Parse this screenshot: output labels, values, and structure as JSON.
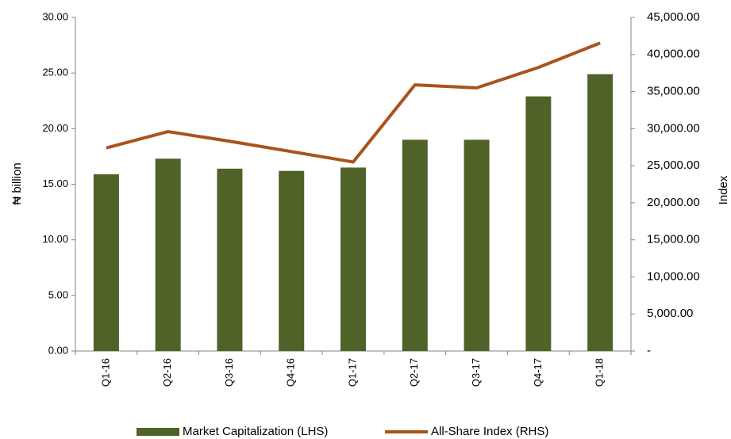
{
  "chart_data": {
    "type": "bar_line",
    "categories": [
      "Q1-16",
      "Q2-16",
      "Q3-16",
      "Q4-16",
      "Q1-17",
      "Q2-17",
      "Q3-17",
      "Q4-17",
      "Q1-18"
    ],
    "series": [
      {
        "name": "Market Capitalization (LHS)",
        "type": "bar",
        "color": "#4f6228",
        "values": [
          15.9,
          17.3,
          16.4,
          16.2,
          16.5,
          19.0,
          19.0,
          22.9,
          24.9
        ]
      },
      {
        "name": "All-Share Index (RHS)",
        "type": "line",
        "axis": "y2",
        "color": "#a8541c",
        "values": [
          27400,
          29600,
          28300,
          26900,
          25500,
          35900,
          35500,
          38250,
          41550
        ]
      }
    ],
    "ylabel": "₦ billion",
    "y2label": "Index",
    "ylim": [
      0,
      30
    ],
    "yticks": [
      {
        "value": 0,
        "label": "0.00"
      },
      {
        "value": 5,
        "label": "5.00"
      },
      {
        "value": 10,
        "label": "10.00"
      },
      {
        "value": 15,
        "label": "15.00"
      },
      {
        "value": 20,
        "label": "20.00"
      },
      {
        "value": 25,
        "label": "25.00"
      },
      {
        "value": 30,
        "label": "30.00"
      }
    ],
    "y2lim": [
      0,
      45000
    ],
    "y2ticks": [
      {
        "value": 0,
        "label": "-"
      },
      {
        "value": 5000,
        "label": "5,000.00"
      },
      {
        "value": 10000,
        "label": "10,000.00"
      },
      {
        "value": 15000,
        "label": "15,000.00"
      },
      {
        "value": 20000,
        "label": "20,000.00"
      },
      {
        "value": 25000,
        "label": "25,000.00"
      },
      {
        "value": 30000,
        "label": "30,000.00"
      },
      {
        "value": 35000,
        "label": "35,000.00"
      },
      {
        "value": 40000,
        "label": "40,000.00"
      },
      {
        "value": 45000,
        "label": "45,000.00"
      }
    ],
    "grid": false,
    "legend": "bottom"
  }
}
